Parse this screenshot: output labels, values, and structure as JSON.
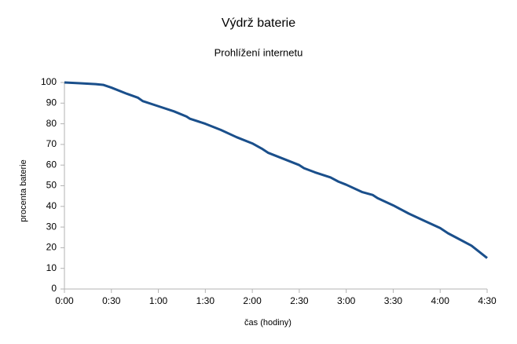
{
  "chart_data": {
    "type": "line",
    "title": "Výdrž baterie",
    "subtitle": "Prohlížení internetu",
    "x_label": "čas (hodiny)",
    "y_label": "procenta baterie",
    "x": [
      0,
      10,
      20,
      25,
      30,
      40,
      47,
      50,
      60,
      70,
      78,
      80,
      90,
      100,
      110,
      120,
      126,
      130,
      140,
      150,
      153,
      160,
      170,
      175,
      180,
      190,
      197,
      200,
      210,
      220,
      230,
      240,
      245,
      250,
      260,
      265,
      270
    ],
    "series": [
      {
        "name": "procenta baterie",
        "color": "#1a4f8b",
        "values": [
          100,
          99.6,
          99.2,
          98.8,
          97.5,
          94.5,
          92.6,
          91,
          88.5,
          86,
          83.5,
          82.5,
          80,
          77,
          73.5,
          70.5,
          68,
          66,
          63,
          60,
          58.5,
          56.5,
          54,
          52,
          50.5,
          47,
          45.5,
          44,
          40.5,
          36.5,
          33,
          29.5,
          27,
          25,
          21,
          18,
          15
        ]
      }
    ],
    "xlim": [
      0,
      270
    ],
    "xticks": [
      {
        "value": 0,
        "label": "0:00"
      },
      {
        "value": 30,
        "label": "0:30"
      },
      {
        "value": 60,
        "label": "1:00"
      },
      {
        "value": 90,
        "label": "1:30"
      },
      {
        "value": 120,
        "label": "2:00"
      },
      {
        "value": 150,
        "label": "2:30"
      },
      {
        "value": 180,
        "label": "3:00"
      },
      {
        "value": 210,
        "label": "3:30"
      },
      {
        "value": 240,
        "label": "4:00"
      },
      {
        "value": 270,
        "label": "4:30"
      }
    ],
    "ylim": [
      0,
      100
    ],
    "yticks": [
      0,
      10,
      20,
      30,
      40,
      50,
      60,
      70,
      80,
      90,
      100
    ],
    "grid": false
  }
}
